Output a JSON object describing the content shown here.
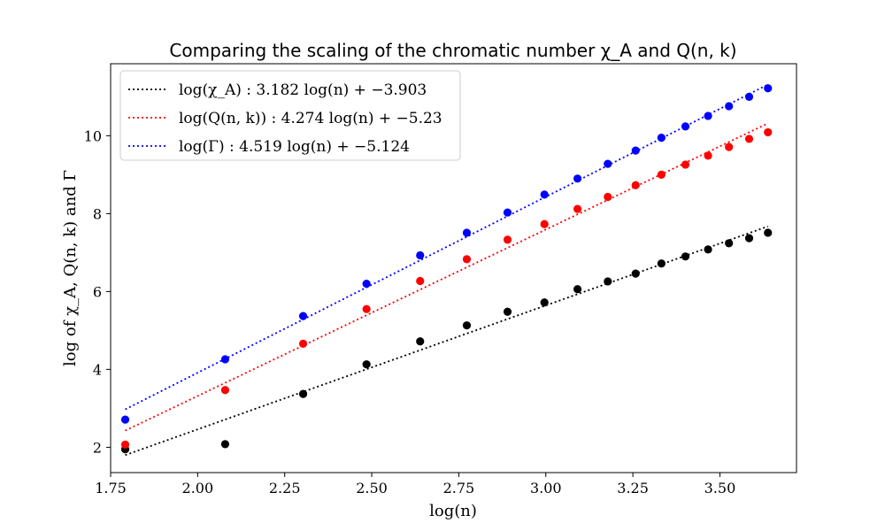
{
  "chart_data": {
    "type": "scatter",
    "title": "Comparing the scaling of the chromatic number χ_A and Q(n, k)",
    "xlabel": "log(n)",
    "ylabel": "log of χ_A, Q(n, k) and Γ",
    "xlim": [
      1.75,
      3.72
    ],
    "ylim": [
      1.35,
      11.85
    ],
    "xticks": [
      1.75,
      2.0,
      2.25,
      2.5,
      2.75,
      3.0,
      3.25,
      3.5
    ],
    "yticks": [
      2,
      4,
      6,
      8,
      10
    ],
    "xtick_labels": [
      "1.75",
      "2.00",
      "2.25",
      "2.50",
      "2.75",
      "3.00",
      "3.25",
      "3.50"
    ],
    "ytick_labels": [
      "2",
      "4",
      "6",
      "8",
      "10"
    ],
    "x": [
      1.792,
      2.079,
      2.303,
      2.485,
      2.639,
      2.773,
      2.89,
      2.996,
      3.091,
      3.178,
      3.258,
      3.332,
      3.401,
      3.466,
      3.526,
      3.584,
      3.638
    ],
    "legend_position": "top-left",
    "series": [
      {
        "name": "chi_A",
        "legend": "log(χ_A) : 3.182 log(n) + −3.903",
        "color": "#000000",
        "fit": {
          "slope": 3.182,
          "intercept": -3.903
        },
        "values": [
          1.95,
          2.08,
          3.37,
          4.13,
          4.72,
          5.13,
          5.48,
          5.72,
          6.06,
          6.26,
          6.46,
          6.72,
          6.9,
          7.08,
          7.24,
          7.37,
          7.51
        ]
      },
      {
        "name": "Q",
        "legend": "log(Q(n, k)) : 4.274 log(n) + −5.23",
        "color": "#ff0000",
        "fit": {
          "slope": 4.274,
          "intercept": -5.23
        },
        "values": [
          2.07,
          3.47,
          4.66,
          5.55,
          6.27,
          6.83,
          7.33,
          7.73,
          8.12,
          8.43,
          8.73,
          9.0,
          9.26,
          9.49,
          9.71,
          9.92,
          10.09
        ]
      },
      {
        "name": "Gamma",
        "legend": "log(Γ) : 4.519 log(n) + −5.124",
        "color": "#0000ff",
        "fit": {
          "slope": 4.519,
          "intercept": -5.124
        },
        "values": [
          2.71,
          4.26,
          5.37,
          6.2,
          6.93,
          7.51,
          8.03,
          8.49,
          8.9,
          9.28,
          9.62,
          9.95,
          10.24,
          10.51,
          10.76,
          11.0,
          11.22
        ]
      }
    ]
  }
}
